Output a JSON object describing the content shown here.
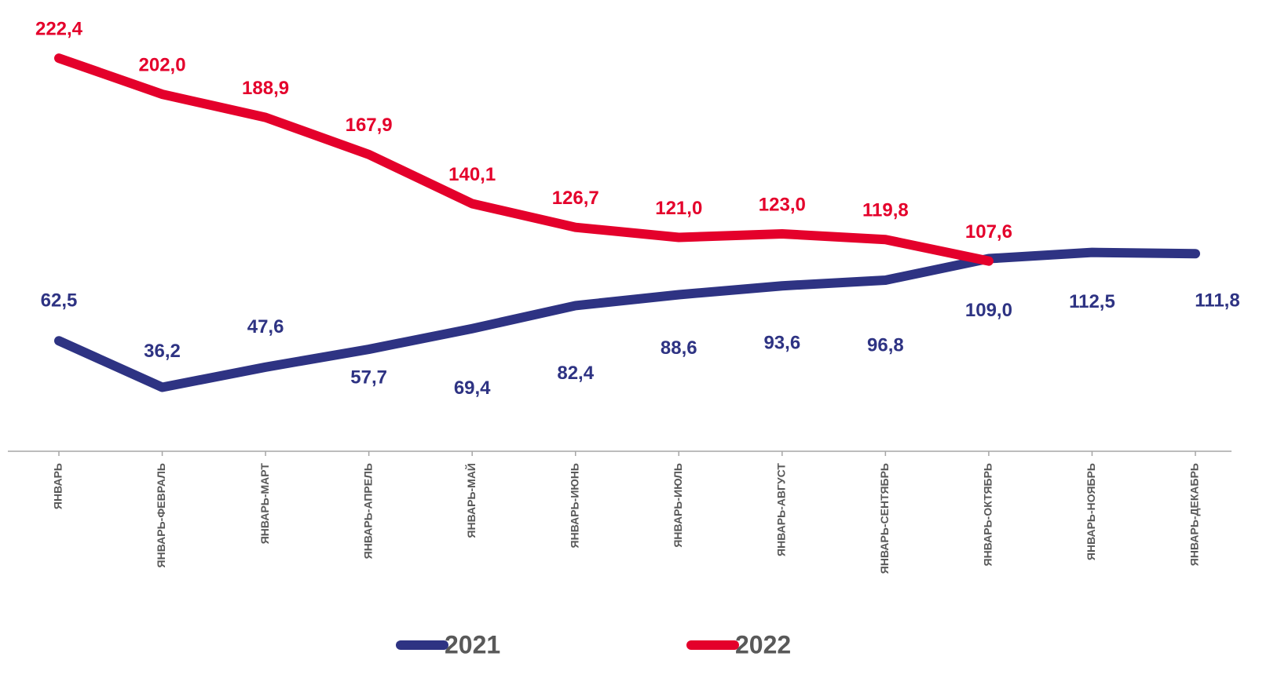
{
  "chart_data": {
    "type": "line",
    "categories": [
      "ЯНВАРЬ",
      "ЯНВАРЬ-ФЕВРАЛЬ",
      "ЯНВАРЬ-МАРТ",
      "ЯНВАРЬ-АПРЕЛЬ",
      "ЯНВАРЬ-МАЙ",
      "ЯНВАРЬ-ИЮНЬ",
      "ЯНВАРЬ-ИЮЛЬ",
      "ЯНВАРЬ-АВГУСТ",
      "ЯНВАРЬ-СЕНТЯБРЬ",
      "ЯНВАРЬ-ОКТЯБРЬ",
      "ЯНВАРЬ-НОЯБРЬ",
      "ЯНВАРЬ-ДЕКАБРЬ"
    ],
    "series": [
      {
        "name": "2021",
        "color": "#2e3383",
        "values": [
          62.5,
          36.2,
          47.6,
          57.7,
          69.4,
          82.4,
          88.6,
          93.6,
          96.8,
          109.0,
          112.5,
          111.8
        ],
        "value_labels": [
          "62,5",
          "36,2",
          "47,6",
          "57,7",
          "69,4",
          "82,4",
          "88,6",
          "93,6",
          "96,8",
          "109,0",
          "112,5",
          "111,8"
        ]
      },
      {
        "name": "2022",
        "color": "#e4002b",
        "values": [
          222.4,
          202.0,
          188.9,
          167.9,
          140.1,
          126.7,
          121.0,
          123.0,
          119.8,
          107.6,
          null,
          null
        ],
        "value_labels": [
          "222,4",
          "202,0",
          "188,9",
          "167,9",
          "140,1",
          "126,7",
          "121,0",
          "123,0",
          "119,8",
          "107,6",
          null,
          null
        ]
      }
    ],
    "ylim": [
      0,
      250
    ],
    "legend": "bottom"
  }
}
